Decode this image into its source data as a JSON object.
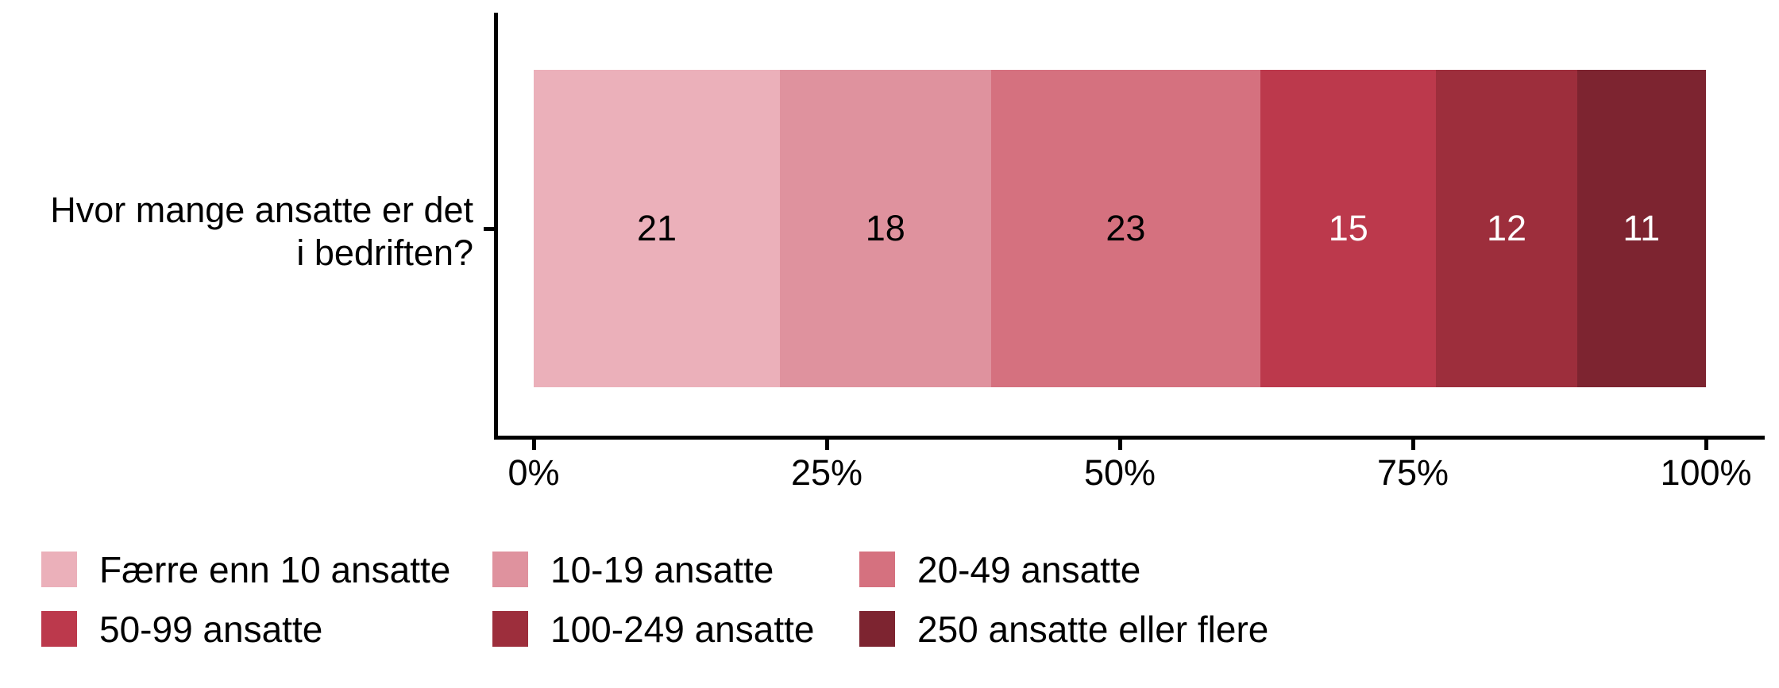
{
  "chart_data": {
    "type": "bar",
    "orientation": "horizontal",
    "stacked": true,
    "title": "",
    "category_label": "Hvor mange ansatte er det\ni bedriften?",
    "series": [
      {
        "name": "Færre enn 10 ansatte",
        "value": 21,
        "color": "#EBB0BA",
        "label_color": "#000000"
      },
      {
        "name": "10-19 ansatte",
        "value": 18,
        "color": "#DF929E",
        "label_color": "#000000"
      },
      {
        "name": "20-49 ansatte",
        "value": 23,
        "color": "#D5717F",
        "label_color": "#000000"
      },
      {
        "name": "50-99 ansatte",
        "value": 15,
        "color": "#BC394C",
        "label_color": "#FFFFFF"
      },
      {
        "name": "100-249 ansatte",
        "value": 12,
        "color": "#9D2E3C",
        "label_color": "#FFFFFF"
      },
      {
        "name": "250 ansatte eller flere",
        "value": 11,
        "color": "#7D2430",
        "label_color": "#FFFFFF"
      }
    ],
    "x_axis": {
      "range": [
        0,
        100
      ],
      "tick_values": [
        0,
        25,
        50,
        75,
        100
      ],
      "tick_labels": [
        "0%",
        "25%",
        "50%",
        "75%",
        "100%"
      ]
    },
    "axis_color": "#000000",
    "background_color": "#FFFFFF",
    "legend_position": "bottom",
    "grid": false
  }
}
